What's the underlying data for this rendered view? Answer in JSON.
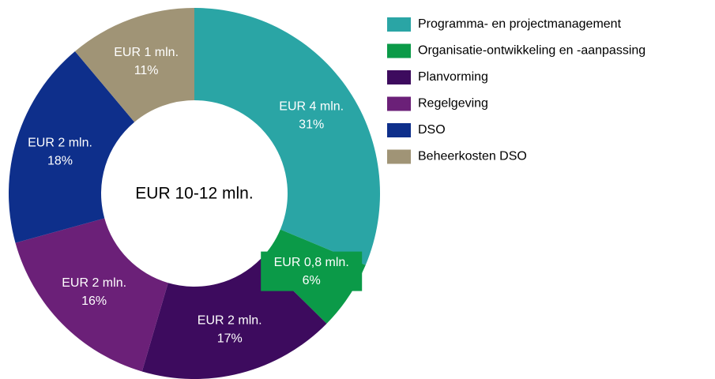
{
  "chart_data": {
    "type": "donut",
    "center_label": "EUR 10-12 mln.",
    "categories": [
      "Programma- en projectmanagement",
      "Organisatie-ontwikkeling en -aanpassing",
      "Planvorming",
      "Regelgeving",
      "DSO",
      "Beheerkosten DSO"
    ],
    "values": [
      31,
      6,
      17,
      16,
      18,
      11
    ],
    "value_labels": [
      "31%",
      "6%",
      "17%",
      "16%",
      "18%",
      "11%"
    ],
    "amounts": [
      "EUR 4 mln.",
      "EUR 0,8 mln.",
      "EUR 2 mln.",
      "EUR 2 mln.",
      "EUR 2 mln.",
      "EUR 1 mln."
    ],
    "colors": [
      "#2aa5a5",
      "#0b9a48",
      "#3d0b5e",
      "#6b2078",
      "#0e2f8b",
      "#a09476"
    ],
    "legend": "right"
  }
}
